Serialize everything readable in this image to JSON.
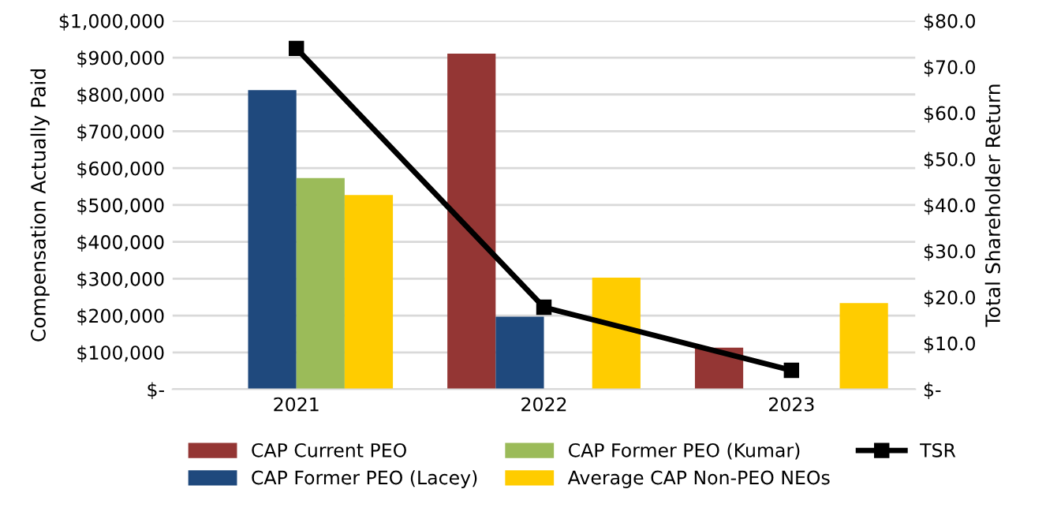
{
  "chart_data": {
    "type": "bar",
    "categories": [
      "2021",
      "2022",
      "2023"
    ],
    "ylabel": "Compensation Actually Paid",
    "y2label": "Total Shareholder Return",
    "series": [
      {
        "name": "CAP Current PEO",
        "color": "#943634",
        "values": [
          null,
          911000,
          113000
        ]
      },
      {
        "name": "CAP Former PEO (Lacey)",
        "color": "#1f497d",
        "values": [
          812000,
          197000,
          null
        ]
      },
      {
        "name": "CAP Former PEO (Kumar)",
        "color": "#9bbb59",
        "values": [
          573000,
          null,
          null
        ]
      },
      {
        "name": "Average CAP Non-PEO NEOs",
        "color": "#ffcc00",
        "values": [
          527000,
          303000,
          234000
        ]
      },
      {
        "name": "TSR",
        "type": "line",
        "axis": "y2",
        "color": "#000000",
        "marker": "square",
        "values": [
          74.0,
          17.8,
          4.1
        ]
      }
    ],
    "ylim": [
      0,
      1000000
    ],
    "yticks": [
      {
        "value": 0,
        "label": "$-"
      },
      {
        "value": 100000,
        "label": "$100,000"
      },
      {
        "value": 200000,
        "label": "$200,000"
      },
      {
        "value": 300000,
        "label": "$300,000"
      },
      {
        "value": 400000,
        "label": "$400,000"
      },
      {
        "value": 500000,
        "label": "$500,000"
      },
      {
        "value": 600000,
        "label": "$600,000"
      },
      {
        "value": 700000,
        "label": "$700,000"
      },
      {
        "value": 800000,
        "label": "$800,000"
      },
      {
        "value": 900000,
        "label": "$900,000"
      },
      {
        "value": 1000000,
        "label": "$1,000,000"
      }
    ],
    "y2lim": [
      0,
      80
    ],
    "y2ticks": [
      {
        "value": 0,
        "label": "$-"
      },
      {
        "value": 10,
        "label": "$10.0"
      },
      {
        "value": 20,
        "label": "$20.0"
      },
      {
        "value": 30,
        "label": "$30.0"
      },
      {
        "value": 40,
        "label": "$40.0"
      },
      {
        "value": 50,
        "label": "$50.0"
      },
      {
        "value": 60,
        "label": "$60.0"
      },
      {
        "value": 70,
        "label": "$70.0"
      },
      {
        "value": 80,
        "label": "$80.0"
      }
    ],
    "grid": "y",
    "legend": "bottom"
  }
}
